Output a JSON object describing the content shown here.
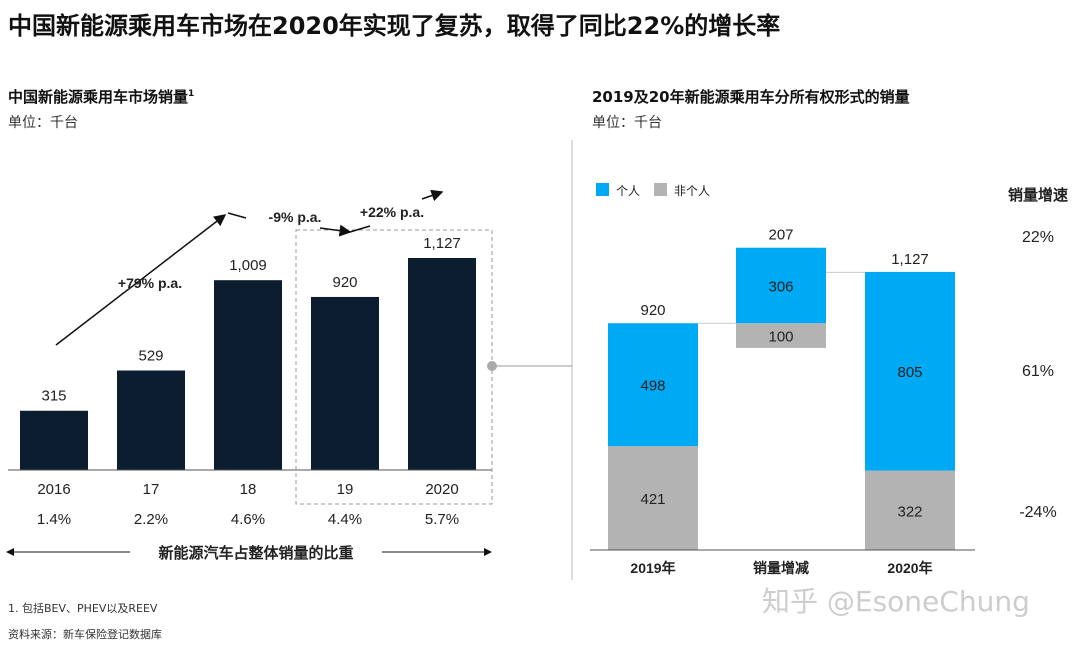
{
  "title": "中国新能源乘用车市场在2020年实现了复苏，取得了同比22%的增长率",
  "footnote": "1.    包括BEV、PHEV以及REEV",
  "source": "资料来源：新车保险登记数据库",
  "watermark": "知乎 @EsoneChung",
  "colors": {
    "dark": "#0b1d2e",
    "individual": "#00a9f4",
    "non_individual": "#b3b3b3"
  },
  "chart_data": [
    {
      "type": "bar",
      "title": "中国新能源乘用车市场销量",
      "title_sup": "1",
      "unit": "单位：千台",
      "categories": [
        "2016",
        "17",
        "18",
        "19",
        "2020"
      ],
      "values": [
        315,
        529,
        1009,
        920,
        1127
      ],
      "labels": [
        "315",
        "529",
        "1,009",
        "920",
        "1,127"
      ],
      "share": [
        "1.4%",
        "2.2%",
        "4.6%",
        "4.4%",
        "5.7%"
      ],
      "share_label": "新能源汽车占整体销量的比重",
      "annotations": [
        "+79% p.a.",
        "-9% p.a.",
        "+22% p.a."
      ]
    },
    {
      "type": "bar",
      "subtype": "waterfall-stacked",
      "title": "2019及20年新能源乘用车分所有权形式的销量",
      "unit": "单位：千台",
      "legend": [
        "个人",
        "非个人"
      ],
      "categories": [
        "2019年",
        "销量增减",
        "2020年"
      ],
      "series": [
        {
          "name": "个人",
          "values": [
            498,
            306,
            805
          ]
        },
        {
          "name": "非个人",
          "values": [
            421,
            -100,
            322
          ]
        }
      ],
      "totals": [
        "920",
        "207",
        "1,127"
      ],
      "growth_header": "销量增速",
      "growth": [
        "22%",
        "61%",
        "-24%"
      ]
    }
  ]
}
